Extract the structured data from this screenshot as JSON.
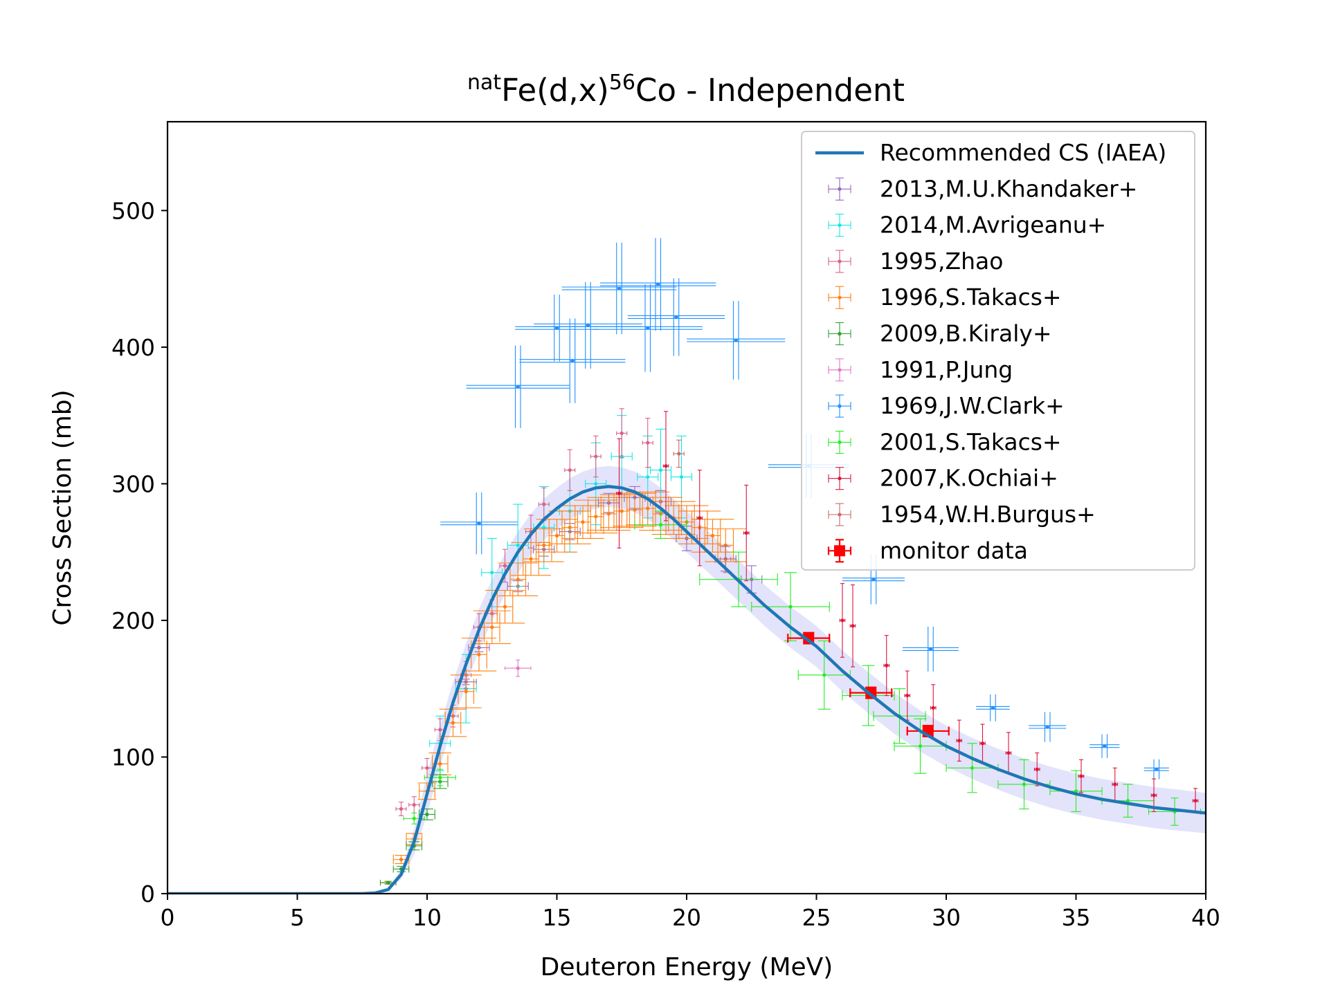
{
  "chart_data": {
    "type": "scatter",
    "title": {
      "sup_pre": "nat",
      "element": "Fe(d,x)",
      "sup_mid": "56",
      "product": "Co - Independent"
    },
    "xlabel": "Deuteron Energy (MeV)",
    "ylabel": "Cross Section (mb)",
    "xlim": [
      0,
      40
    ],
    "ylim": [
      0,
      565
    ],
    "xticks": [
      0,
      5,
      10,
      15,
      20,
      25,
      30,
      35,
      40
    ],
    "yticks": [
      0,
      100,
      200,
      300,
      400,
      500
    ],
    "grid": false,
    "legend_position": "top-right",
    "curve": {
      "name": "Recommended CS (IAEA)",
      "color": "#1f77b4",
      "band_color": "#8080ee",
      "x": [
        0,
        7.5,
        8.0,
        8.5,
        9.0,
        9.5,
        10.0,
        10.5,
        11.0,
        11.5,
        12.0,
        12.5,
        13.0,
        13.5,
        14.0,
        14.5,
        15.0,
        15.5,
        16.0,
        16.5,
        17.0,
        17.5,
        18.0,
        18.5,
        19.0,
        19.5,
        20.0,
        20.5,
        21.0,
        21.5,
        22.0,
        22.5,
        23.0,
        23.5,
        24.0,
        24.5,
        25.0,
        26.0,
        27.0,
        28.0,
        29.0,
        30.0,
        31.0,
        32.0,
        33.0,
        34.0,
        35.0,
        36.0,
        37.0,
        38.0,
        39.0,
        40.0
      ],
      "y": [
        0,
        0,
        0.5,
        3,
        14,
        38,
        73,
        108,
        140,
        168,
        193,
        215,
        234,
        250,
        263,
        274,
        282,
        289,
        294,
        297,
        298,
        297,
        294,
        289,
        282,
        274,
        265,
        256,
        247,
        238,
        229,
        220,
        211,
        203,
        195,
        188,
        181,
        163,
        147,
        132,
        119,
        108,
        99,
        91,
        84,
        78,
        73,
        69,
        66,
        63,
        61,
        59
      ],
      "band_width": 15
    },
    "series": [
      {
        "name": "2013,M.U.Khandaker+",
        "color": "#9467bd",
        "points": [
          [
            11.5,
            155,
            2,
            0.4,
            6
          ],
          [
            12.0,
            180,
            3,
            0.4,
            7
          ],
          [
            13.5,
            225,
            4,
            0.4,
            8
          ],
          [
            14.5,
            252,
            5,
            0.4,
            8
          ],
          [
            15.5,
            265,
            6,
            0.4,
            8
          ],
          [
            17.0,
            286,
            7,
            0.4,
            9
          ],
          [
            18.0,
            290,
            8,
            0.4,
            9
          ],
          [
            19.0,
            287,
            8,
            0.4,
            9
          ],
          [
            20.0,
            260,
            9,
            0.4,
            8
          ],
          [
            21.5,
            245,
            9,
            0.4,
            8
          ],
          [
            22.5,
            230,
            10,
            0.4,
            8
          ]
        ]
      },
      {
        "name": "2014,M.Avrigeanu+",
        "color": "#17e6e6",
        "points": [
          [
            10.5,
            110,
            20,
            0.4,
            7
          ],
          [
            11.5,
            150,
            25,
            0.4,
            7
          ],
          [
            12.5,
            235,
            25,
            0.4,
            8
          ],
          [
            13.5,
            255,
            30,
            0.4,
            8
          ],
          [
            14.5,
            268,
            30,
            0.4,
            8
          ],
          [
            15.5,
            280,
            30,
            0.4,
            8
          ],
          [
            16.5,
            300,
            30,
            0.4,
            8
          ],
          [
            17.5,
            320,
            30,
            0.4,
            8
          ],
          [
            18.5,
            305,
            30,
            0.4,
            8
          ],
          [
            19.0,
            310,
            30,
            0.4,
            8
          ],
          [
            19.8,
            305,
            30,
            0.4,
            8
          ]
        ]
      },
      {
        "name": "1995,Zhao",
        "color": "#d9618a",
        "points": [
          [
            9.0,
            62,
            5,
            0.2,
            4
          ],
          [
            9.5,
            65,
            6,
            0.2,
            4
          ],
          [
            10.0,
            92,
            7,
            0.2,
            4
          ],
          [
            10.5,
            120,
            8,
            0.2,
            4
          ],
          [
            11.0,
            130,
            8,
            0.2,
            4
          ],
          [
            11.5,
            160,
            10,
            0.2,
            4
          ],
          [
            12.0,
            195,
            10,
            0.2,
            4
          ],
          [
            12.5,
            205,
            10,
            0.2,
            4
          ],
          [
            13.0,
            240,
            12,
            0.2,
            4
          ],
          [
            14.0,
            265,
            12,
            0.2,
            4
          ],
          [
            14.5,
            285,
            12,
            0.2,
            4
          ],
          [
            15.5,
            310,
            15,
            0.2,
            4
          ],
          [
            16.5,
            320,
            15,
            0.2,
            4
          ],
          [
            17.5,
            337,
            18,
            0.2,
            4
          ],
          [
            18.5,
            330,
            18,
            0.2,
            4
          ]
        ]
      },
      {
        "name": "1996,S.Takacs+",
        "color": "#ff7f0e",
        "points": [
          [
            8.5,
            8,
            1,
            0.3,
            6
          ],
          [
            9.0,
            25,
            3,
            0.3,
            10
          ],
          [
            9.5,
            40,
            4,
            0.3,
            12
          ],
          [
            10.0,
            75,
            6,
            0.3,
            15
          ],
          [
            10.5,
            95,
            8,
            0.3,
            18
          ],
          [
            11.0,
            125,
            10,
            0.3,
            22
          ],
          [
            11.5,
            148,
            12,
            0.3,
            25
          ],
          [
            12.0,
            175,
            12,
            0.3,
            28
          ],
          [
            12.5,
            195,
            12,
            0.3,
            30
          ],
          [
            13.0,
            210,
            12,
            0.3,
            32
          ],
          [
            13.5,
            230,
            12,
            0.3,
            32
          ],
          [
            14.0,
            245,
            12,
            0.3,
            32
          ],
          [
            14.5,
            255,
            12,
            0.3,
            32
          ],
          [
            15.0,
            262,
            12,
            0.3,
            33
          ],
          [
            15.5,
            268,
            12,
            0.3,
            34
          ],
          [
            16.0,
            272,
            12,
            0.3,
            34
          ],
          [
            16.5,
            276,
            12,
            0.3,
            35
          ],
          [
            17.0,
            278,
            12,
            0.3,
            35
          ],
          [
            17.5,
            280,
            12,
            0.3,
            35
          ],
          [
            18.0,
            281,
            12,
            0.3,
            35
          ],
          [
            18.5,
            282,
            12,
            0.3,
            35
          ],
          [
            19.0,
            278,
            12,
            0.3,
            35
          ],
          [
            19.5,
            275,
            12,
            0.3,
            35
          ],
          [
            20.0,
            272,
            12,
            0.3,
            35
          ],
          [
            20.5,
            268,
            12,
            0.3,
            34
          ],
          [
            21.0,
            262,
            12,
            0.3,
            34
          ],
          [
            21.5,
            255,
            12,
            0.3,
            33
          ]
        ]
      },
      {
        "name": "2009,B.Kiraly+",
        "color": "#2ca02c",
        "points": [
          [
            8.5,
            8,
            1,
            0.3,
            5
          ],
          [
            9.0,
            18,
            2,
            0.3,
            7
          ],
          [
            9.5,
            35,
            3,
            0.3,
            9
          ],
          [
            10.0,
            58,
            4,
            0.3,
            10
          ],
          [
            10.5,
            82,
            5,
            0.3,
            11
          ]
        ]
      },
      {
        "name": "1991,P.Jung",
        "color": "#e377c2",
        "points": [
          [
            13.5,
            165,
            6,
            0.5,
            3
          ]
        ]
      },
      {
        "name": "1969,J.W.Clark+",
        "color": "#1e90ff",
        "points": [
          [
            12.0,
            271,
            1,
            0.1,
            62
          ],
          [
            13.5,
            371,
            1,
            0.1,
            83
          ],
          [
            15.0,
            414,
            1,
            0.1,
            67
          ],
          [
            15.6,
            390,
            1,
            0.1,
            85
          ],
          [
            16.2,
            416,
            1,
            0.1,
            87
          ],
          [
            17.4,
            443,
            1,
            0.1,
            92
          ],
          [
            18.5,
            414,
            1,
            0.1,
            88
          ],
          [
            18.9,
            446,
            1,
            0.1,
            93
          ],
          [
            19.6,
            422,
            1,
            0.1,
            78
          ],
          [
            21.9,
            405,
            1,
            0.1,
            79
          ],
          [
            24.7,
            313,
            1,
            0.1,
            65
          ],
          [
            27.2,
            230,
            1,
            0.1,
            50
          ],
          [
            29.4,
            179,
            1,
            0.1,
            45
          ],
          [
            31.8,
            136,
            1,
            0.1,
            27
          ],
          [
            33.9,
            122,
            1,
            0.1,
            30
          ],
          [
            36.1,
            108,
            1,
            0.1,
            24
          ],
          [
            38.1,
            91,
            1,
            0.1,
            20
          ]
        ]
      },
      {
        "name": "2001,S.Takacs+",
        "color": "#22ee22",
        "points": [
          [
            9.5,
            55,
            4,
            0.4,
            4
          ],
          [
            10.5,
            85,
            6,
            0.6,
            5
          ],
          [
            19.0,
            270,
            10,
            1.0,
            10
          ],
          [
            22.0,
            230,
            20,
            1.5,
            12
          ],
          [
            24.0,
            210,
            25,
            1.5,
            10
          ],
          [
            25.3,
            160,
            25,
            1.0,
            10
          ],
          [
            27.0,
            145,
            22,
            1.0,
            10
          ],
          [
            28.2,
            130,
            20,
            1.0,
            10
          ],
          [
            29.0,
            108,
            20,
            1.0,
            10
          ],
          [
            31.0,
            92,
            18,
            1.0,
            8
          ],
          [
            33.0,
            80,
            18,
            1.0,
            8
          ],
          [
            35.0,
            75,
            15,
            1.0,
            8
          ],
          [
            37.0,
            68,
            12,
            1.0,
            8
          ],
          [
            38.8,
            60,
            10,
            1.0,
            6
          ]
        ]
      },
      {
        "name": "2007,K.Ochiai+",
        "color": "#dc143c",
        "points": [
          [
            17.4,
            293,
            40,
            0.1,
            3
          ],
          [
            19.2,
            313,
            40,
            0.1,
            3
          ],
          [
            20.5,
            275,
            35,
            0.1,
            3
          ],
          [
            22.3,
            264,
            35,
            0.1,
            3
          ],
          [
            26.0,
            200,
            27,
            0.1,
            3
          ],
          [
            26.4,
            196,
            30,
            0.1,
            3
          ],
          [
            27.7,
            167,
            22,
            0.1,
            3
          ],
          [
            28.5,
            145,
            18,
            0.1,
            3
          ],
          [
            29.5,
            136,
            17,
            0.1,
            3
          ],
          [
            30.5,
            112,
            15,
            0.1,
            3
          ],
          [
            31.4,
            110,
            14,
            0.1,
            3
          ],
          [
            32.4,
            103,
            15,
            0.1,
            3
          ],
          [
            33.5,
            91,
            12,
            0.1,
            3
          ],
          [
            35.2,
            86,
            12,
            0.1,
            3
          ],
          [
            36.5,
            80,
            12,
            0.1,
            3
          ],
          [
            38.0,
            72,
            12,
            0.1,
            3
          ],
          [
            39.6,
            68,
            9,
            0.1,
            3
          ]
        ]
      },
      {
        "name": "1954,W.H.Burgus+",
        "color": "#c76a6a",
        "points": [
          [
            19.7,
            322,
            10,
            0.2,
            4
          ],
          [
            21.5,
            245,
            10,
            0.2,
            4
          ]
        ]
      },
      {
        "name": "monitor data",
        "color": "#ff0000",
        "points": [
          [
            24.7,
            187,
            4,
            0.8,
            4
          ],
          [
            27.1,
            147,
            4,
            0.8,
            4
          ],
          [
            29.3,
            119,
            4,
            0.8,
            4
          ]
        ]
      }
    ]
  }
}
